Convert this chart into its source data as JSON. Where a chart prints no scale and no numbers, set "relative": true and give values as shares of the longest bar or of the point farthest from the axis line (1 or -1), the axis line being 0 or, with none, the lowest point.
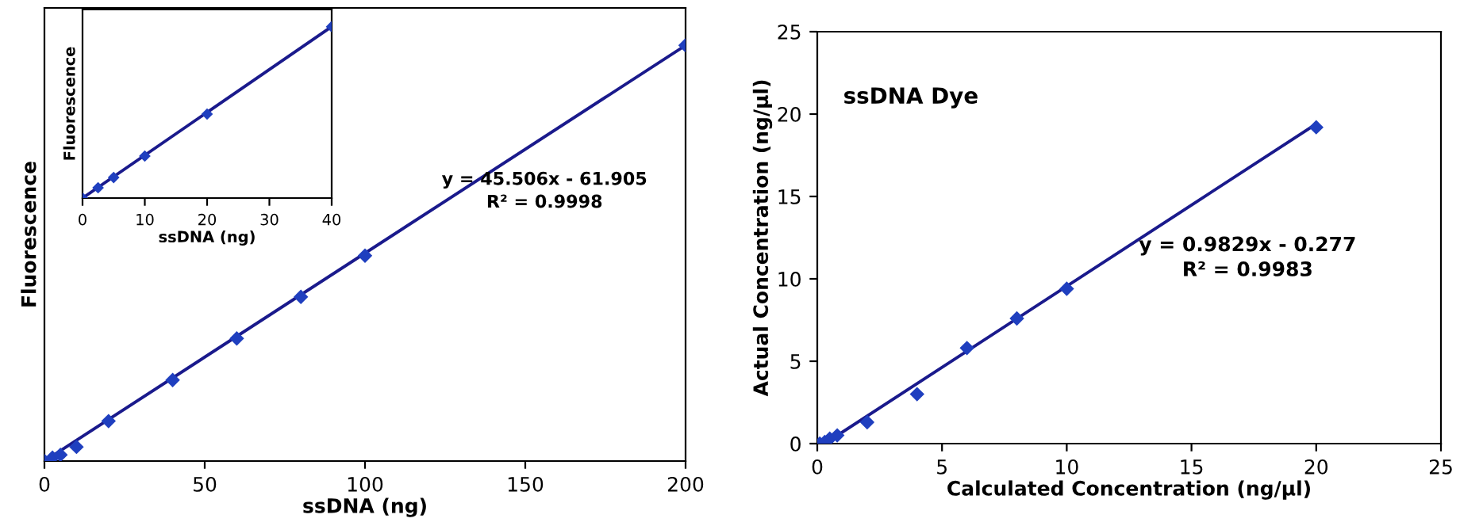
{
  "chart_data": [
    {
      "type": "scatter",
      "relative": true,
      "xlabel": "ssDNA (ng)",
      "ylabel": "Fluorescence",
      "xlim": [
        0,
        200
      ],
      "xticks": [
        0,
        50,
        100,
        150,
        200
      ],
      "series": [
        {
          "type": "scatter",
          "color": "#1f3fbf",
          "marker": "diamond",
          "x": [
            0,
            2.5,
            5,
            10,
            20,
            40,
            60,
            80,
            100,
            200
          ],
          "values": [
            0,
            0.008,
            0.015,
            0.034,
            0.096,
            0.195,
            0.295,
            0.395,
            0.494,
            1
          ]
        },
        {
          "type": "line",
          "color": "#1a1a8c",
          "line_style": "solid",
          "x": [
            0,
            200
          ],
          "values": [
            0,
            1
          ]
        }
      ],
      "annotations": [
        "y = 45.506x - 61.905",
        "R² = 0.9998"
      ]
    },
    {
      "type": "scatter",
      "relative": true,
      "xlabel": "ssDNA (ng)",
      "ylabel": "Fluorescence",
      "xlim": [
        0,
        40
      ],
      "xticks": [
        0,
        10,
        20,
        30,
        40
      ],
      "series": [
        {
          "type": "scatter",
          "color": "#1f3fbf",
          "marker": "diamond",
          "x": [
            0,
            2.5,
            5,
            10,
            20,
            40
          ],
          "values": [
            0,
            0.06,
            0.12,
            0.245,
            0.49,
            1
          ]
        },
        {
          "type": "line",
          "color": "#1a1a8c",
          "line_style": "solid",
          "x": [
            0,
            40
          ],
          "values": [
            0,
            1
          ]
        }
      ]
    },
    {
      "type": "scatter",
      "xlabel": "Calculated Concentration (ng/µl)",
      "ylabel": "Actual Concentration (ng/µl)",
      "xlim": [
        0,
        25
      ],
      "xticks": [
        0,
        5,
        10,
        15,
        20,
        25
      ],
      "ylim": [
        0,
        25
      ],
      "yticks": [
        0,
        5,
        10,
        15,
        20,
        25
      ],
      "series": [
        {
          "type": "scatter",
          "color": "#1f3fbf",
          "marker": "diamond",
          "x": [
            0.1,
            0.3,
            0.5,
            0.8,
            2,
            4,
            6,
            8,
            10,
            20
          ],
          "values": [
            0,
            0.1,
            0.3,
            0.5,
            1.3,
            3,
            5.8,
            7.6,
            9.4,
            19.2
          ]
        },
        {
          "type": "line",
          "color": "#1a1a8c",
          "line_style": "solid",
          "x": [
            0.3,
            20
          ],
          "values": [
            0,
            19.4
          ]
        }
      ],
      "annotations": [
        "ssDNA Dye",
        "y = 0.9829x - 0.277",
        "R² = 0.9983"
      ]
    }
  ]
}
